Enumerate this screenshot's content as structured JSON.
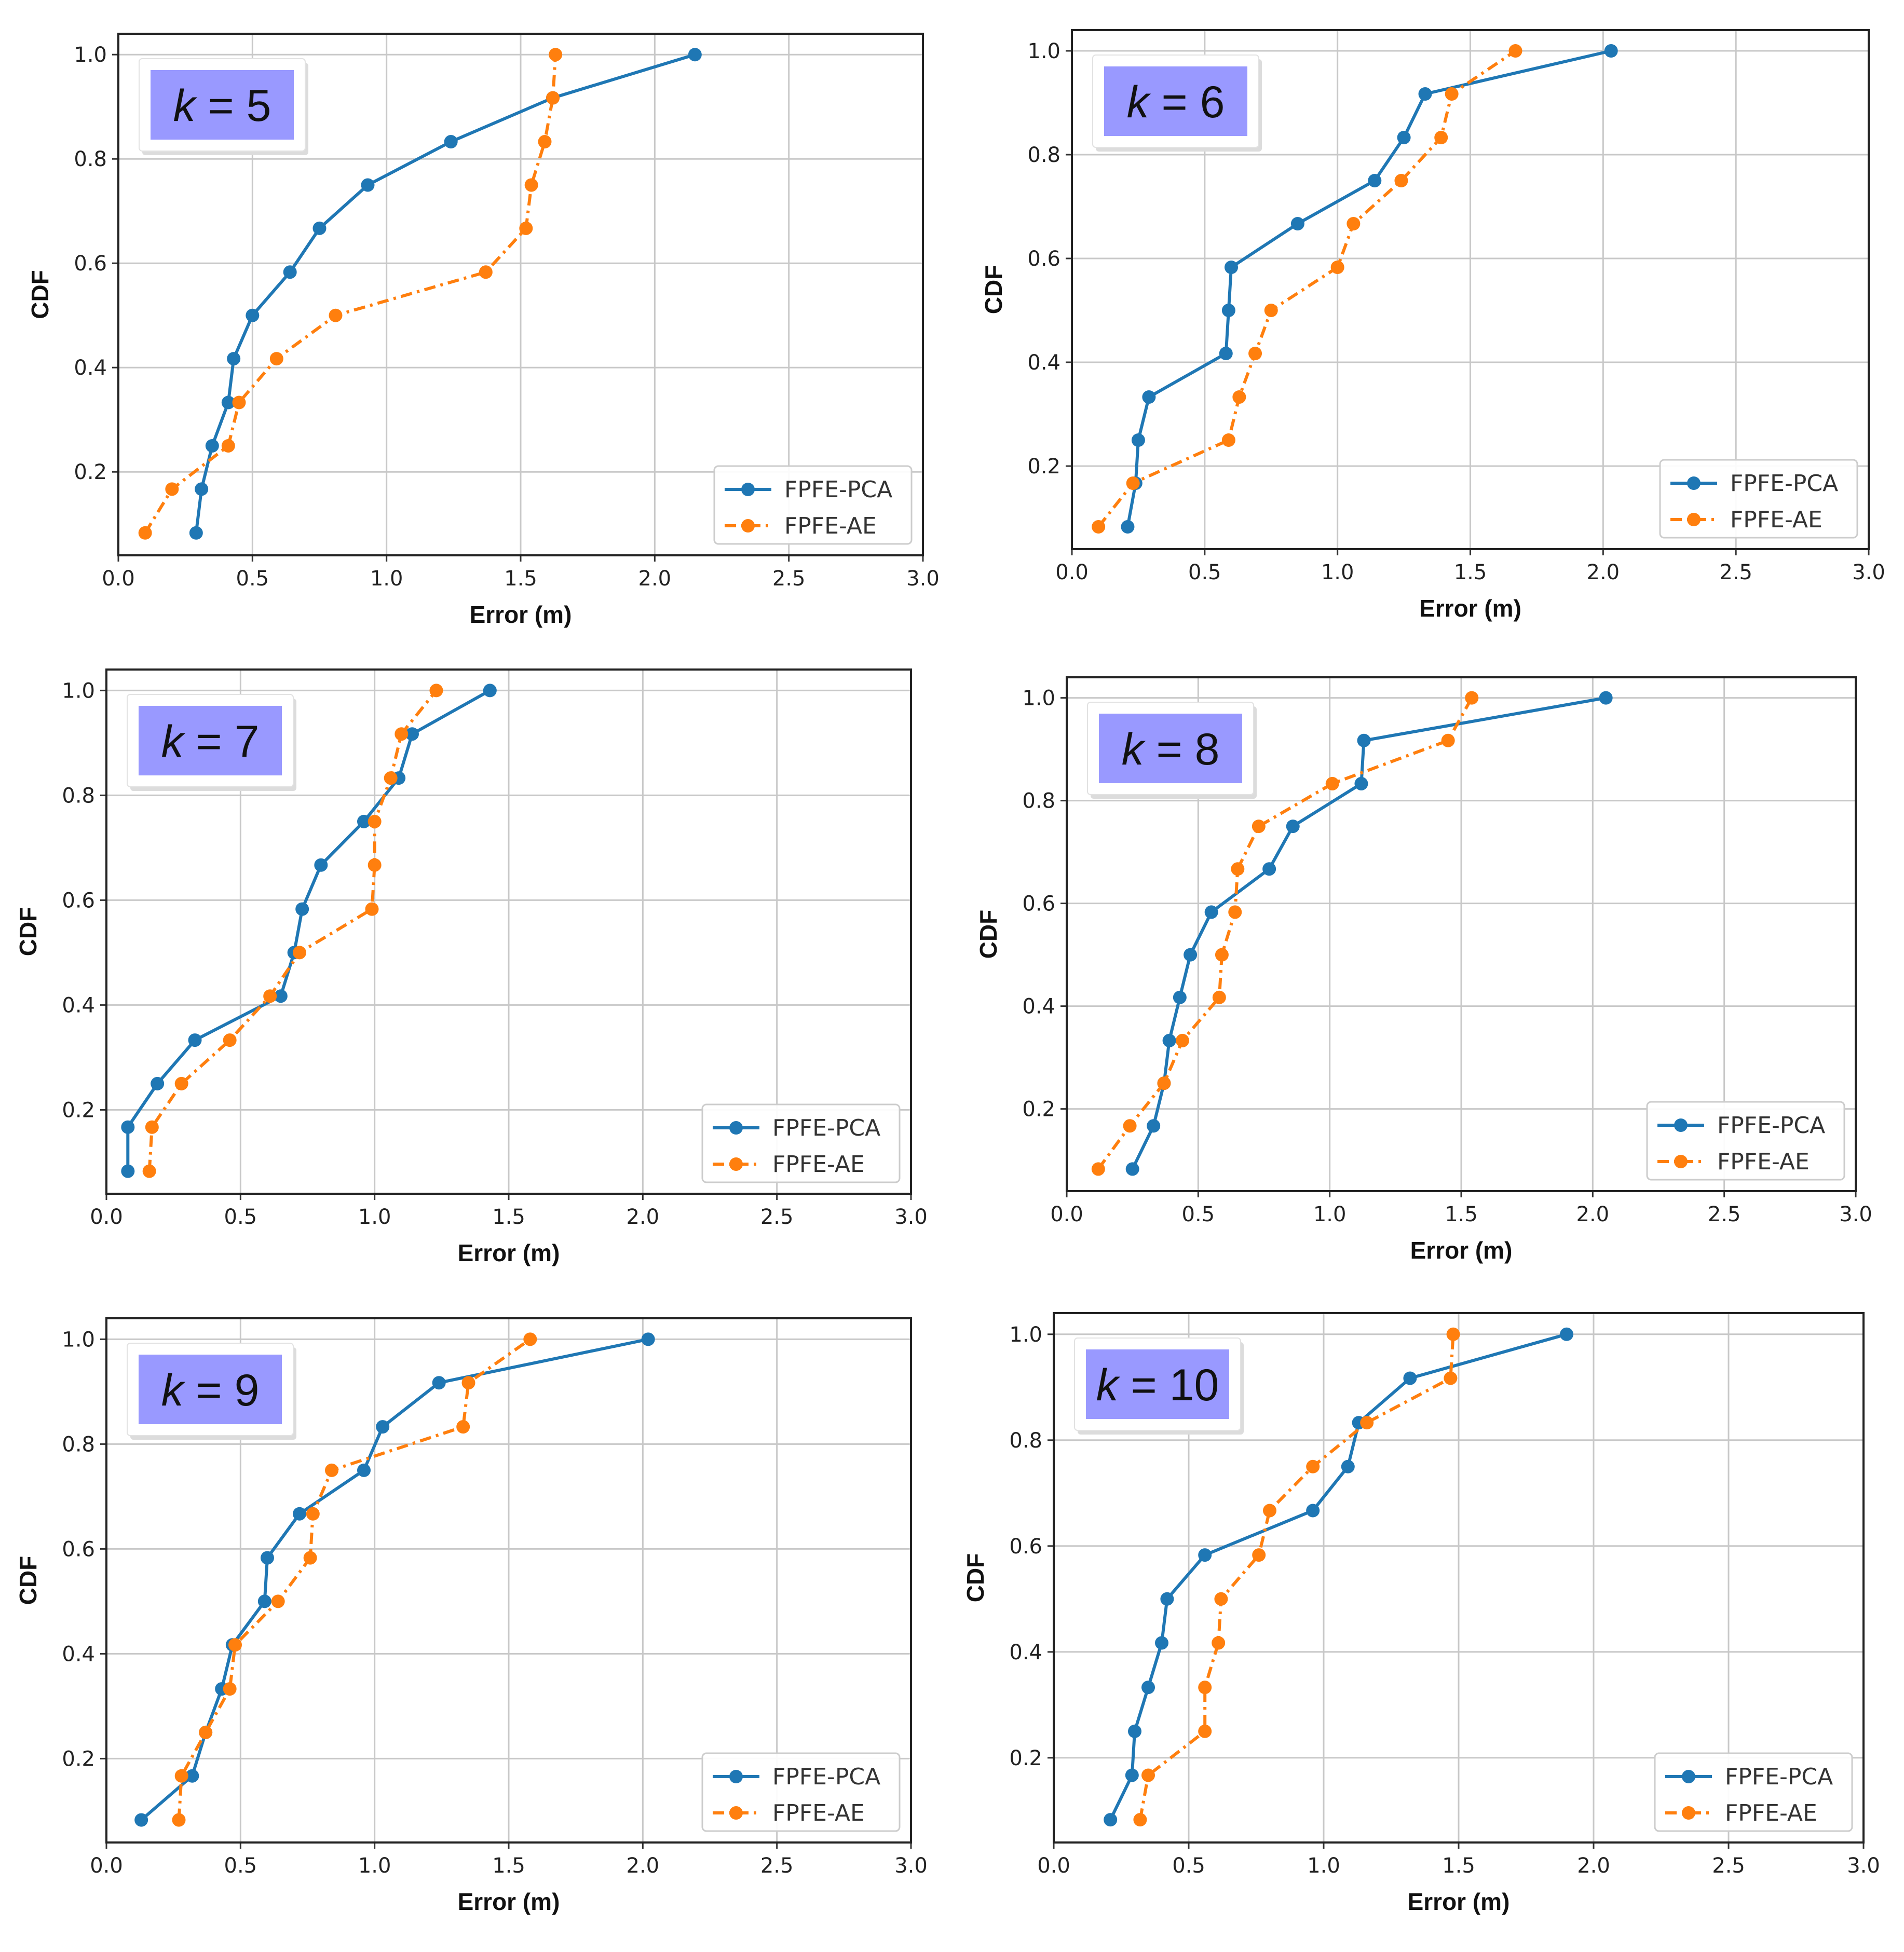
{
  "colors": {
    "pca": "#1f77b4",
    "ae": "#ff7f0e",
    "k_box": "#9999ff",
    "grid": "#c8c8c8"
  },
  "chart_data": [
    {
      "type": "line",
      "k_prefix": "k",
      "k_suffix": "= 5",
      "xlabel": "Error (m)",
      "ylabel": "CDF",
      "xlim": [
        0,
        3
      ],
      "ylim": [
        0.04,
        1.04
      ],
      "xticks": [
        "0.0",
        "0.5",
        "1.0",
        "1.5",
        "2.0",
        "2.5",
        "3.0"
      ],
      "yticks": [
        "0.2",
        "0.4",
        "0.6",
        "0.8",
        "1.0"
      ],
      "legend": "bottom-right",
      "series": [
        {
          "name": "FPFE-PCA",
          "style": "solid",
          "x": [
            0.29,
            0.31,
            0.35,
            0.41,
            0.43,
            0.5,
            0.64,
            0.75,
            0.93,
            1.24,
            1.62,
            2.15
          ],
          "y": [
            0.083,
            0.167,
            0.25,
            0.333,
            0.417,
            0.5,
            0.583,
            0.667,
            0.75,
            0.833,
            0.917,
            1.0
          ]
        },
        {
          "name": "FPFE-AE",
          "style": "dashdot",
          "x": [
            0.1,
            0.2,
            0.41,
            0.45,
            0.59,
            0.81,
            1.37,
            1.52,
            1.54,
            1.59,
            1.62,
            1.63
          ],
          "y": [
            0.083,
            0.167,
            0.25,
            0.333,
            0.417,
            0.5,
            0.583,
            0.667,
            0.75,
            0.833,
            0.917,
            1.0
          ]
        }
      ]
    },
    {
      "type": "line",
      "k_prefix": "k",
      "k_suffix": "= 6",
      "xlabel": "Error (m)",
      "ylabel": "CDF",
      "xlim": [
        0,
        3
      ],
      "ylim": [
        0.04,
        1.04
      ],
      "xticks": [
        "0.0",
        "0.5",
        "1.0",
        "1.5",
        "2.0",
        "2.5",
        "3.0"
      ],
      "yticks": [
        "0.2",
        "0.4",
        "0.6",
        "0.8",
        "1.0"
      ],
      "legend": "bottom-right",
      "series": [
        {
          "name": "FPFE-PCA",
          "style": "solid",
          "x": [
            0.21,
            0.24,
            0.25,
            0.29,
            0.58,
            0.59,
            0.6,
            0.85,
            1.14,
            1.25,
            1.33,
            2.03
          ],
          "y": [
            0.083,
            0.167,
            0.25,
            0.333,
            0.417,
            0.5,
            0.583,
            0.667,
            0.75,
            0.833,
            0.917,
            1.0
          ]
        },
        {
          "name": "FPFE-AE",
          "style": "dashdot",
          "x": [
            0.1,
            0.23,
            0.59,
            0.63,
            0.69,
            0.75,
            1.0,
            1.06,
            1.24,
            1.39,
            1.43,
            1.67
          ],
          "y": [
            0.083,
            0.167,
            0.25,
            0.333,
            0.417,
            0.5,
            0.583,
            0.667,
            0.75,
            0.833,
            0.917,
            1.0
          ]
        }
      ]
    },
    {
      "type": "line",
      "k_prefix": "k",
      "k_suffix": "= 7",
      "xlabel": "Error (m)",
      "ylabel": "CDF",
      "xlim": [
        0,
        3
      ],
      "ylim": [
        0.04,
        1.04
      ],
      "xticks": [
        "0.0",
        "0.5",
        "1.0",
        "1.5",
        "2.0",
        "2.5",
        "3.0"
      ],
      "yticks": [
        "0.2",
        "0.4",
        "0.6",
        "0.8",
        "1.0"
      ],
      "legend": "bottom-right",
      "series": [
        {
          "name": "FPFE-PCA",
          "style": "solid",
          "x": [
            0.08,
            0.08,
            0.19,
            0.33,
            0.65,
            0.7,
            0.73,
            0.8,
            0.96,
            1.09,
            1.14,
            1.43
          ],
          "y": [
            0.083,
            0.167,
            0.25,
            0.333,
            0.417,
            0.5,
            0.583,
            0.667,
            0.75,
            0.833,
            0.917,
            1.0
          ]
        },
        {
          "name": "FPFE-AE",
          "style": "dashdot",
          "x": [
            0.16,
            0.17,
            0.28,
            0.46,
            0.61,
            0.72,
            0.99,
            1.0,
            1.0,
            1.06,
            1.1,
            1.23
          ],
          "y": [
            0.083,
            0.167,
            0.25,
            0.333,
            0.417,
            0.5,
            0.583,
            0.667,
            0.75,
            0.833,
            0.917,
            1.0
          ]
        }
      ]
    },
    {
      "type": "line",
      "k_prefix": "k",
      "k_suffix": "= 8",
      "xlabel": "Error (m)",
      "ylabel": "CDF",
      "xlim": [
        0,
        3
      ],
      "ylim": [
        0.04,
        1.04
      ],
      "xticks": [
        "0.0",
        "0.5",
        "1.0",
        "1.5",
        "2.0",
        "2.5",
        "3.0"
      ],
      "yticks": [
        "0.2",
        "0.4",
        "0.6",
        "0.8",
        "1.0"
      ],
      "legend": "bottom-right",
      "series": [
        {
          "name": "FPFE-PCA",
          "style": "solid",
          "x": [
            0.25,
            0.33,
            0.37,
            0.39,
            0.43,
            0.47,
            0.55,
            0.77,
            0.86,
            1.12,
            1.13,
            2.05
          ],
          "y": [
            0.083,
            0.167,
            0.25,
            0.333,
            0.417,
            0.5,
            0.583,
            0.667,
            0.75,
            0.833,
            0.917,
            1.0
          ]
        },
        {
          "name": "FPFE-AE",
          "style": "dashdot",
          "x": [
            0.12,
            0.24,
            0.37,
            0.44,
            0.58,
            0.59,
            0.64,
            0.65,
            0.73,
            1.01,
            1.45,
            1.54
          ],
          "y": [
            0.083,
            0.167,
            0.25,
            0.333,
            0.417,
            0.5,
            0.583,
            0.667,
            0.75,
            0.833,
            0.917,
            1.0
          ]
        }
      ]
    },
    {
      "type": "line",
      "k_prefix": "k",
      "k_suffix": "= 9",
      "xlabel": "Error (m)",
      "ylabel": "CDF",
      "xlim": [
        0,
        3
      ],
      "ylim": [
        0.04,
        1.04
      ],
      "xticks": [
        "0.0",
        "0.5",
        "1.0",
        "1.5",
        "2.0",
        "2.5",
        "3.0"
      ],
      "yticks": [
        "0.2",
        "0.4",
        "0.6",
        "0.8",
        "1.0"
      ],
      "legend": "bottom-right",
      "series": [
        {
          "name": "FPFE-PCA",
          "style": "solid",
          "x": [
            0.13,
            0.32,
            0.37,
            0.43,
            0.47,
            0.59,
            0.6,
            0.72,
            0.96,
            1.03,
            1.24,
            2.02
          ],
          "y": [
            0.083,
            0.167,
            0.25,
            0.333,
            0.417,
            0.5,
            0.583,
            0.667,
            0.75,
            0.833,
            0.917,
            1.0
          ]
        },
        {
          "name": "FPFE-AE",
          "style": "dashdot",
          "x": [
            0.27,
            0.28,
            0.37,
            0.46,
            0.48,
            0.64,
            0.76,
            0.77,
            0.84,
            1.33,
            1.35,
            1.58
          ],
          "y": [
            0.083,
            0.167,
            0.25,
            0.333,
            0.417,
            0.5,
            0.583,
            0.667,
            0.75,
            0.833,
            0.917,
            1.0
          ]
        }
      ]
    },
    {
      "type": "line",
      "k_prefix": "k",
      "k_suffix": "= 10",
      "xlabel": "Error (m)",
      "ylabel": "CDF",
      "xlim": [
        0,
        3
      ],
      "ylim": [
        0.04,
        1.04
      ],
      "xticks": [
        "0.0",
        "0.5",
        "1.0",
        "1.5",
        "2.0",
        "2.5",
        "3.0"
      ],
      "yticks": [
        "0.2",
        "0.4",
        "0.6",
        "0.8",
        "1.0"
      ],
      "legend": "bottom-right",
      "series": [
        {
          "name": "FPFE-PCA",
          "style": "solid",
          "x": [
            0.21,
            0.29,
            0.3,
            0.35,
            0.4,
            0.42,
            0.56,
            0.96,
            1.09,
            1.13,
            1.32,
            1.9
          ],
          "y": [
            0.083,
            0.167,
            0.25,
            0.333,
            0.417,
            0.5,
            0.583,
            0.667,
            0.75,
            0.833,
            0.917,
            1.0
          ]
        },
        {
          "name": "FPFE-AE",
          "style": "dashdot",
          "x": [
            0.32,
            0.35,
            0.56,
            0.56,
            0.61,
            0.62,
            0.76,
            0.8,
            0.96,
            1.16,
            1.47,
            1.48
          ],
          "y": [
            0.083,
            0.167,
            0.25,
            0.333,
            0.417,
            0.5,
            0.583,
            0.667,
            0.75,
            0.833,
            0.917,
            1.0
          ]
        }
      ]
    }
  ]
}
